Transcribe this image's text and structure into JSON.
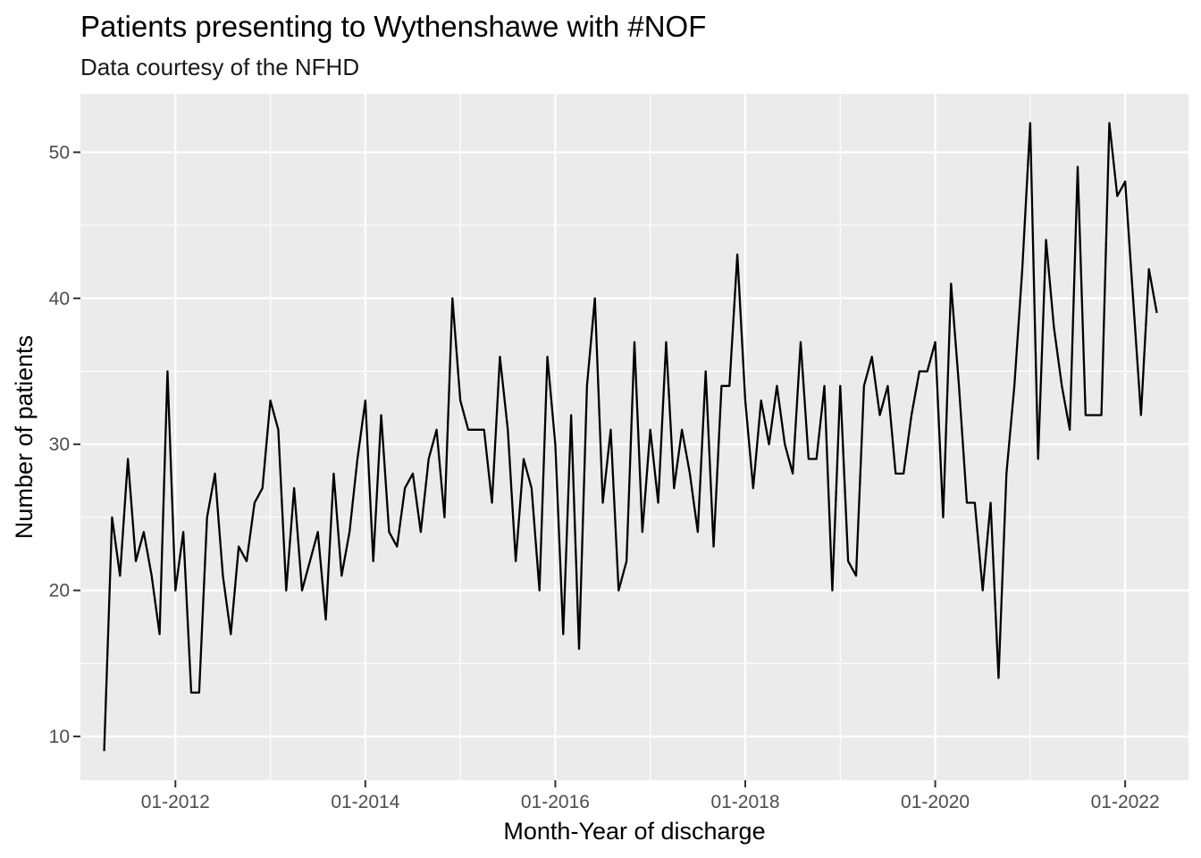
{
  "chart_data": {
    "type": "line",
    "title": "Patients presenting to Wythenshawe with #NOF",
    "subtitle": "Data courtesy of the NFHD",
    "xlabel": "Month-Year of discharge",
    "ylabel": "Number of patients",
    "x_start": "2011-04",
    "x_end": "2022-05",
    "xlim": [
      "2011-01",
      "2022-09"
    ],
    "ylim": [
      7,
      54
    ],
    "x_ticks": [
      "2012-01",
      "2014-01",
      "2016-01",
      "2018-01",
      "2020-01",
      "2022-01"
    ],
    "x_tick_labels": [
      "01-2012",
      "01-2014",
      "01-2016",
      "01-2018",
      "01-2020",
      "01-2022"
    ],
    "y_ticks": [
      10,
      20,
      30,
      40,
      50
    ],
    "y_tick_labels": [
      "10",
      "20",
      "30",
      "40",
      "50"
    ],
    "grid": true,
    "line_color": "#000000",
    "panel_color": "#ebebeb",
    "values": [
      9,
      25,
      21,
      29,
      22,
      24,
      21,
      17,
      35,
      20,
      24,
      13,
      13,
      25,
      28,
      21,
      17,
      23,
      22,
      26,
      27,
      33,
      31,
      20,
      27,
      20,
      22,
      24,
      18,
      28,
      21,
      24,
      29,
      33,
      22,
      32,
      24,
      23,
      27,
      28,
      24,
      29,
      31,
      25,
      40,
      33,
      31,
      31,
      31,
      26,
      36,
      31,
      22,
      29,
      27,
      20,
      36,
      30,
      17,
      32,
      16,
      34,
      40,
      26,
      31,
      20,
      22,
      37,
      24,
      31,
      26,
      37,
      27,
      31,
      28,
      24,
      35,
      23,
      34,
      34,
      43,
      33,
      27,
      33,
      30,
      34,
      30,
      28,
      37,
      29,
      29,
      34,
      20,
      34,
      22,
      21,
      34,
      36,
      32,
      34,
      28,
      28,
      32,
      35,
      35,
      37,
      25,
      41,
      34,
      26,
      26,
      20,
      26,
      14,
      28,
      34,
      42,
      52,
      29,
      44,
      38,
      34,
      31,
      49,
      32,
      32,
      32,
      52,
      47,
      48,
      40,
      32,
      42,
      39
    ]
  }
}
